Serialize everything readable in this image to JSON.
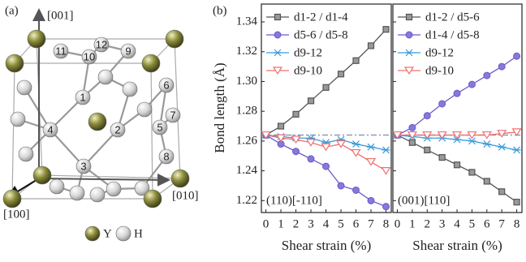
{
  "panel_labels": [
    "(a)",
    "(b)"
  ],
  "panel_a": {
    "axes": [
      "[001]",
      "[010]",
      "[100]"
    ],
    "atom_labels": [
      "1",
      "2",
      "3",
      "4",
      "5",
      "6",
      "7",
      "8",
      "9",
      "10",
      "11",
      "12"
    ],
    "legend": [
      "Y",
      "H"
    ]
  },
  "y_axis": {
    "label": "Bond length (Å)",
    "ylim": [
      1.212,
      1.352
    ],
    "yticks": [
      1.22,
      1.24,
      1.26,
      1.28,
      {
        "value": 1.3,
        "label": "1.30"
      },
      1.32,
      1.34
    ]
  },
  "chart_data": [
    {
      "type": "line",
      "annotation": "(110)[-110]",
      "xlabel": "Shear strain (%)",
      "x": [
        0,
        1,
        2,
        3,
        4,
        5,
        6,
        7,
        8
      ],
      "xlim": [
        -0.3,
        8.35
      ],
      "xticks": [
        0,
        1,
        2,
        3,
        4,
        5,
        6,
        7,
        8
      ],
      "reference_line": 1.264,
      "reference_color": "#8a9ab8",
      "series": [
        {
          "name": "d1-2 / d1-4",
          "color": "#555555",
          "marker": "square",
          "values": [
            1.264,
            1.27,
            1.278,
            1.287,
            1.296,
            1.305,
            1.314,
            1.324,
            1.335
          ]
        },
        {
          "name": "d5-6 / d5-8",
          "color": "#6a5acd",
          "marker": "circle",
          "values": [
            1.264,
            1.258,
            1.253,
            1.248,
            1.243,
            1.23,
            1.227,
            1.22,
            1.216
          ]
        },
        {
          "name": "d9-12",
          "color": "#3b9ad9",
          "marker": "star",
          "values": [
            1.264,
            1.263,
            1.262,
            1.262,
            1.259,
            1.261,
            1.258,
            1.256,
            1.254
          ]
        },
        {
          "name": "d9-10",
          "color": "#f07070",
          "marker": "triangle-down",
          "values": [
            1.264,
            1.262,
            1.261,
            1.259,
            1.256,
            1.258,
            1.252,
            1.246,
            1.24
          ]
        }
      ]
    },
    {
      "type": "line",
      "annotation": "(001)[110]",
      "xlabel": "Shear strain (%)",
      "x": [
        0,
        1,
        2,
        3,
        4,
        5,
        6,
        7,
        8
      ],
      "xlim": [
        -0.3,
        8.35
      ],
      "xticks": [
        0,
        1,
        2,
        3,
        4,
        5,
        6,
        7,
        8
      ],
      "reference_line": 1.264,
      "reference_color": "#8a9ab8",
      "series": [
        {
          "name": "d1-2 / d5-6",
          "color": "#555555",
          "marker": "square",
          "values": [
            1.264,
            1.259,
            1.254,
            1.249,
            1.244,
            1.239,
            1.233,
            1.226,
            1.219
          ]
        },
        {
          "name": "d1-4 / d5-8",
          "color": "#6a5acd",
          "marker": "circle",
          "values": [
            1.264,
            1.269,
            1.277,
            1.285,
            1.292,
            1.298,
            1.304,
            1.31,
            1.317
          ]
        },
        {
          "name": "d9-12",
          "color": "#3b9ad9",
          "marker": "star",
          "values": [
            1.264,
            1.263,
            1.262,
            1.262,
            1.261,
            1.26,
            1.258,
            1.256,
            1.254
          ]
        },
        {
          "name": "d9-10",
          "color": "#f07070",
          "marker": "triangle-down",
          "values": [
            1.264,
            1.264,
            1.264,
            1.264,
            1.264,
            1.264,
            1.264,
            1.265,
            1.266
          ]
        }
      ]
    }
  ]
}
